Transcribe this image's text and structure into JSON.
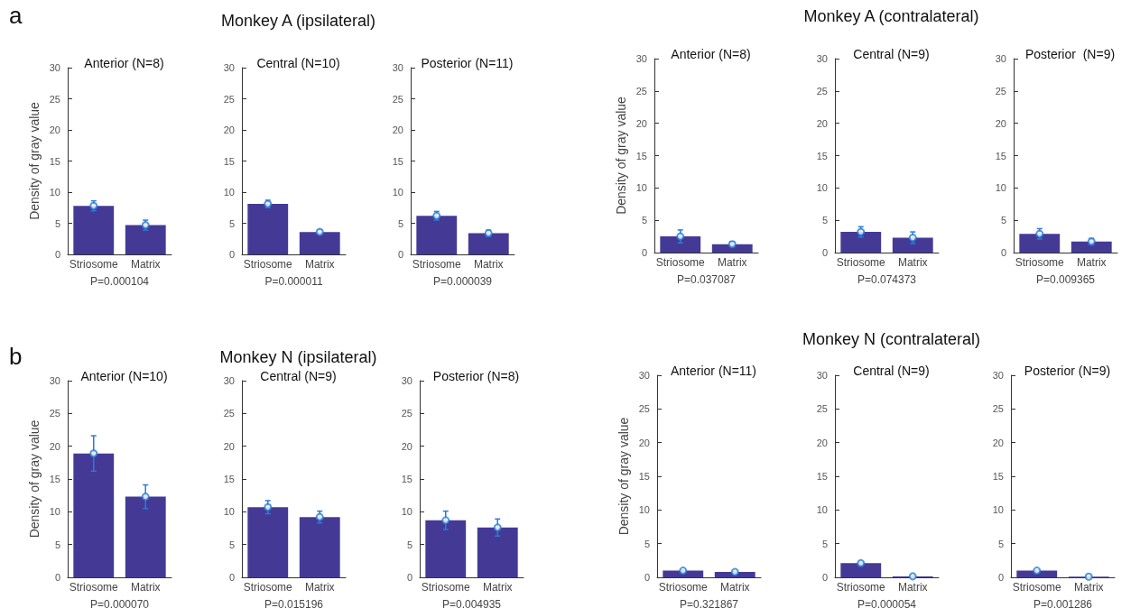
{
  "chart_data": [
    {
      "type": "bar",
      "annotations": [
        "a"
      ],
      "title": "Anterior (N=8)",
      "ylabel": "Density of gray value",
      "xlabel": "P=0.000104",
      "categories": [
        "Striosome",
        "Matrix"
      ],
      "series": [
        {
          "type": "bar",
          "color": "#443a96",
          "values": [
            7.8,
            4.7
          ]
        },
        {
          "type": "scatter",
          "color": "#2b7bd6",
          "marker": "circle",
          "x": [
            "Striosome",
            "Matrix"
          ],
          "values": [
            7.8,
            4.7
          ],
          "errors": [
            0.8,
            0.8
          ]
        }
      ],
      "ylim": [
        0,
        30
      ],
      "yticks": [
        0,
        5,
        10,
        15,
        20,
        25,
        30
      ],
      "grid": false
    },
    {
      "type": "bar",
      "subtitle": "Monkey A (ipsilateral)",
      "title": "Central (N=10)",
      "xlabel": "P=0.000011",
      "categories": [
        "Striosome",
        "Matrix"
      ],
      "series": [
        {
          "type": "bar",
          "color": "#443a96",
          "values": [
            8.1,
            3.6
          ]
        },
        {
          "type": "scatter",
          "color": "#2b7bd6",
          "marker": "circle",
          "x": [
            "Striosome",
            "Matrix"
          ],
          "values": [
            8.1,
            3.6
          ],
          "errors": [
            0.6,
            0.3
          ]
        }
      ],
      "ylim": [
        0,
        30
      ],
      "yticks": [
        0,
        5,
        10,
        15,
        20,
        25,
        30
      ],
      "grid": false
    },
    {
      "type": "bar",
      "title": "Posterior (N=11)",
      "xlabel": "P=0.000039",
      "categories": [
        "Striosome",
        "Matrix"
      ],
      "series": [
        {
          "type": "bar",
          "color": "#443a96",
          "values": [
            6.2,
            3.4
          ]
        },
        {
          "type": "scatter",
          "color": "#2b7bd6",
          "marker": "circle",
          "x": [
            "Striosome",
            "Matrix"
          ],
          "values": [
            6.2,
            3.4
          ],
          "errors": [
            0.7,
            0.5
          ]
        }
      ],
      "ylim": [
        0,
        30
      ],
      "yticks": [
        0,
        5,
        10,
        15,
        20,
        25,
        30
      ],
      "grid": false
    },
    {
      "type": "bar",
      "title": "Anterior (N=8)",
      "ylabel": "Density of gray value",
      "xlabel": "P=0.037087",
      "categories": [
        "Striosome",
        "Matrix"
      ],
      "series": [
        {
          "type": "bar",
          "color": "#443a96",
          "values": [
            2.5,
            1.3
          ]
        },
        {
          "type": "scatter",
          "color": "#2b7bd6",
          "marker": "circle",
          "x": [
            "Striosome",
            "Matrix"
          ],
          "values": [
            2.5,
            1.3
          ],
          "errors": [
            1.0,
            0.4
          ]
        }
      ],
      "ylim": [
        0,
        30
      ],
      "yticks": [
        0,
        5,
        10,
        15,
        20,
        25,
        30
      ],
      "grid": false
    },
    {
      "type": "bar",
      "subtitle": "Monkey A (contralateral)",
      "title": "Central (N=9)",
      "xlabel": "P=0.074373",
      "categories": [
        "Striosome",
        "Matrix"
      ],
      "series": [
        {
          "type": "bar",
          "color": "#443a96",
          "values": [
            3.2,
            2.3
          ]
        },
        {
          "type": "scatter",
          "color": "#2b7bd6",
          "marker": "circle",
          "x": [
            "Striosome",
            "Matrix"
          ],
          "values": [
            3.2,
            2.3
          ],
          "errors": [
            0.8,
            0.9
          ]
        }
      ],
      "ylim": [
        0,
        30
      ],
      "yticks": [
        0,
        5,
        10,
        15,
        20,
        25,
        30
      ],
      "grid": false
    },
    {
      "type": "bar",
      "title": "Posterior  (N=9)",
      "xlabel": "P=0.009365",
      "categories": [
        "Striosome",
        "Matrix"
      ],
      "series": [
        {
          "type": "bar",
          "color": "#443a96",
          "values": [
            2.9,
            1.7
          ]
        },
        {
          "type": "scatter",
          "color": "#2b7bd6",
          "marker": "circle",
          "x": [
            "Striosome",
            "Matrix"
          ],
          "values": [
            2.9,
            1.7
          ],
          "errors": [
            0.8,
            0.5
          ]
        }
      ],
      "ylim": [
        0,
        30
      ],
      "yticks": [
        0,
        5,
        10,
        15,
        20,
        25,
        30
      ],
      "grid": false
    },
    {
      "type": "bar",
      "annotations": [
        "b"
      ],
      "title": "Anterior (N=10)",
      "ylabel": "Density of gray value",
      "xlabel": "P=0.000070",
      "categories": [
        "Striosome",
        "Matrix"
      ],
      "series": [
        {
          "type": "bar",
          "color": "#443a96",
          "values": [
            18.9,
            12.3
          ]
        },
        {
          "type": "scatter",
          "color": "#2b7bd6",
          "marker": "circle",
          "x": [
            "Striosome",
            "Matrix"
          ],
          "values": [
            18.9,
            12.3
          ],
          "errors": [
            2.7,
            1.8
          ]
        }
      ],
      "ylim": [
        0,
        30
      ],
      "yticks": [
        0,
        5,
        10,
        15,
        20,
        25,
        30
      ],
      "grid": false
    },
    {
      "type": "bar",
      "subtitle": "Monkey N (ipsilateral)",
      "title": "Central (N=9)",
      "xlabel": "P=0.015196",
      "categories": [
        "Striosome",
        "Matrix"
      ],
      "series": [
        {
          "type": "bar",
          "color": "#443a96",
          "values": [
            10.7,
            9.2
          ]
        },
        {
          "type": "scatter",
          "color": "#2b7bd6",
          "marker": "circle",
          "x": [
            "Striosome",
            "Matrix"
          ],
          "values": [
            10.7,
            9.2
          ],
          "errors": [
            1.0,
            0.9
          ]
        }
      ],
      "ylim": [
        0,
        30
      ],
      "yticks": [
        0,
        5,
        10,
        15,
        20,
        25,
        30
      ],
      "grid": false
    },
    {
      "type": "bar",
      "title": "Posterior (N=8)",
      "xlabel": "P=0.004935",
      "categories": [
        "Striosome",
        "Matrix"
      ],
      "series": [
        {
          "type": "bar",
          "color": "#443a96",
          "values": [
            8.7,
            7.6
          ]
        },
        {
          "type": "scatter",
          "color": "#2b7bd6",
          "marker": "circle",
          "x": [
            "Striosome",
            "Matrix"
          ],
          "values": [
            8.7,
            7.6
          ],
          "errors": [
            1.4,
            1.3
          ]
        }
      ],
      "ylim": [
        0,
        30
      ],
      "yticks": [
        0,
        5,
        10,
        15,
        20,
        25,
        30
      ],
      "grid": false
    },
    {
      "type": "bar",
      "title": "Anterior (N=11)",
      "ylabel": "Density of gray value",
      "xlabel": "P=0.321867",
      "categories": [
        "Striosome",
        "Matrix"
      ],
      "series": [
        {
          "type": "bar",
          "color": "#443a96",
          "values": [
            1.0,
            0.8
          ]
        },
        {
          "type": "scatter",
          "color": "#2b7bd6",
          "marker": "circle",
          "x": [
            "Striosome",
            "Matrix"
          ],
          "values": [
            1.0,
            0.8
          ],
          "errors": [
            0.1,
            0.1
          ]
        }
      ],
      "ylim": [
        0,
        30
      ],
      "yticks": [
        0,
        5,
        10,
        15,
        20,
        25,
        30
      ],
      "grid": false
    },
    {
      "type": "bar",
      "subtitle": "Monkey N (contralateral)",
      "title": "Central (N=9)",
      "xlabel": "P=0.000054",
      "categories": [
        "Striosome",
        "Matrix"
      ],
      "series": [
        {
          "type": "bar",
          "color": "#443a96",
          "values": [
            2.1,
            0.15
          ]
        },
        {
          "type": "scatter",
          "color": "#2b7bd6",
          "marker": "circle",
          "x": [
            "Striosome",
            "Matrix"
          ],
          "values": [
            2.1,
            0.15
          ],
          "errors": [
            0.1,
            0.1
          ]
        }
      ],
      "ylim": [
        0,
        30
      ],
      "yticks": [
        0,
        5,
        10,
        15,
        20,
        25,
        30
      ],
      "grid": false
    },
    {
      "type": "bar",
      "title": "Posterior (N=9)",
      "xlabel": "P=0.001286",
      "categories": [
        "Striosome",
        "Matrix"
      ],
      "series": [
        {
          "type": "bar",
          "color": "#443a96",
          "values": [
            1.0,
            0.1
          ]
        },
        {
          "type": "scatter",
          "color": "#2b7bd6",
          "marker": "circle",
          "x": [
            "Striosome",
            "Matrix"
          ],
          "values": [
            1.0,
            0.1
          ],
          "errors": [
            0.1,
            0.05
          ]
        }
      ],
      "ylim": [
        0,
        30
      ],
      "yticks": [
        0,
        5,
        10,
        15,
        20,
        25,
        30
      ],
      "grid": false
    }
  ]
}
